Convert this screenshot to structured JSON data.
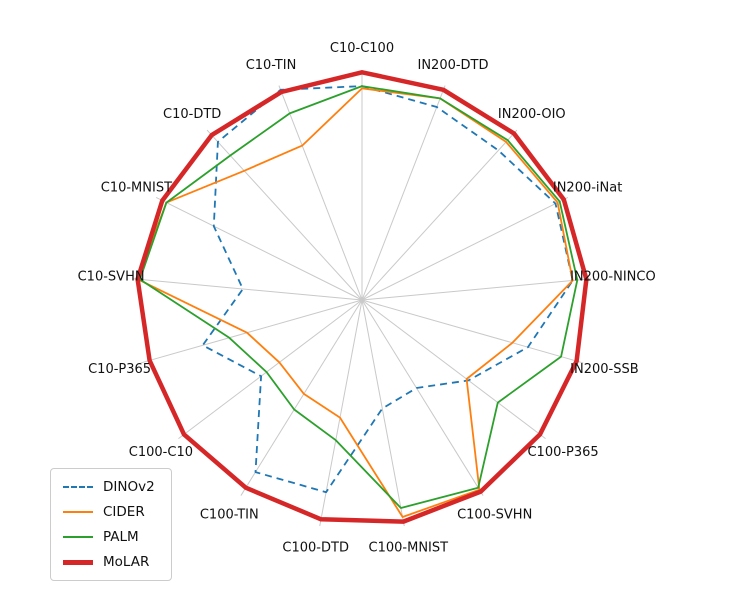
{
  "chart_data": {
    "type": "radar",
    "title": "",
    "categories": [
      "C10-C100",
      "IN200-DTD",
      "IN200-OIO",
      "IN200-iNat",
      "IN200-NINCO",
      "IN200-SSB",
      "C100-P365",
      "C100-SVHN",
      "C100-MNIST",
      "C100-DTD",
      "C100-TIN",
      "C100-C10",
      "C10-P365",
      "C10-SVHN",
      "C10-MNIST",
      "C10-DTD",
      "C10-TIN"
    ],
    "rlim": [
      0,
      1
    ],
    "grid": {
      "spokes": true,
      "circles": false,
      "color": "#c9c9c9"
    },
    "legend_position": "lower-left",
    "series": [
      {
        "name": "DINOv2",
        "color": "#1f77b4",
        "dash": true,
        "width": 1.8,
        "values": [
          0.93,
          0.9,
          0.88,
          0.94,
          0.92,
          0.75,
          0.58,
          0.45,
          0.48,
          0.85,
          0.88,
          0.55,
          0.72,
          0.52,
          0.72,
          0.93,
          0.98
        ]
      },
      {
        "name": "CIDER",
        "color": "#ff7f0e",
        "dash": false,
        "width": 1.8,
        "values": [
          0.92,
          0.94,
          0.93,
          0.95,
          0.92,
          0.68,
          0.57,
          0.97,
          0.96,
          0.52,
          0.48,
          0.45,
          0.52,
          0.98,
          0.95,
          0.76,
          0.72
        ]
      },
      {
        "name": "PALM",
        "color": "#2ca02c",
        "dash": false,
        "width": 1.8,
        "values": [
          0.93,
          0.94,
          0.94,
          0.96,
          0.94,
          0.9,
          0.74,
          0.96,
          0.92,
          0.62,
          0.56,
          0.52,
          0.6,
          0.97,
          0.95,
          0.85,
          0.87
        ]
      },
      {
        "name": "MoLAR",
        "color": "#d62728",
        "dash": false,
        "width": 4.5,
        "values": [
          0.99,
          0.98,
          0.98,
          0.98,
          0.98,
          0.97,
          0.97,
          0.98,
          0.98,
          0.97,
          0.96,
          0.97,
          0.96,
          0.98,
          0.97,
          0.97,
          0.97
        ]
      }
    ]
  },
  "legend": {
    "items": [
      {
        "label": "DINOv2"
      },
      {
        "label": "CIDER"
      },
      {
        "label": "PALM"
      },
      {
        "label": "MoLAR"
      }
    ]
  }
}
